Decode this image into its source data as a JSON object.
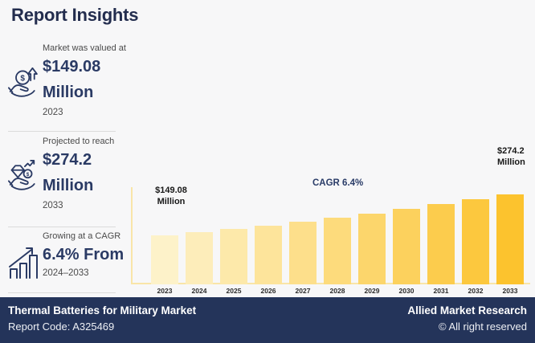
{
  "header": {
    "title": "Report Insights"
  },
  "stats": [
    {
      "label": "Market was valued at",
      "value": "$149.08",
      "unit": "Million",
      "period": "2023",
      "icon": "coin-hand-growth-icon"
    },
    {
      "label": "Projected to reach",
      "value": "$274.2",
      "unit": "Million",
      "period": "2033",
      "icon": "diamond-hand-icon"
    },
    {
      "label": "Growing at a CAGR",
      "value": "6.4% From",
      "period": "2024–2033",
      "icon": "growth-bars-icon"
    }
  ],
  "chart_data": {
    "type": "bar",
    "title": "",
    "xlabel": "",
    "ylabel": "",
    "categories": [
      "2023",
      "2024",
      "2025",
      "2026",
      "2027",
      "2028",
      "2029",
      "2030",
      "2031",
      "2032",
      "2033"
    ],
    "values": [
      149.08,
      158.6,
      168.8,
      179.6,
      191.1,
      203.3,
      216.3,
      230.2,
      244.9,
      260.6,
      274.2
    ],
    "ylim": [
      0,
      274.2
    ],
    "grid": false,
    "legend": false,
    "annotations": {
      "start_value": "$149.08",
      "start_unit": "Million",
      "cagr_label": "CAGR 6.4%",
      "end_value": "$274.2",
      "end_unit": "Million"
    },
    "colors": {
      "bar_start": "#FDF2C9",
      "bar_end": "#FCC32E",
      "axis": "#F9E5A8"
    }
  },
  "footer": {
    "report_title": "Thermal Batteries for Military Market",
    "report_code": "Report Code: A325469",
    "brand": "Allied Market Research",
    "copyright": "© All right reserved"
  },
  "colors": {
    "background": "#F7F7F8",
    "navy": "#24345A",
    "title_navy": "#232D4E",
    "value_navy": "#2A3A64",
    "text_gray": "#4A4A4A"
  }
}
